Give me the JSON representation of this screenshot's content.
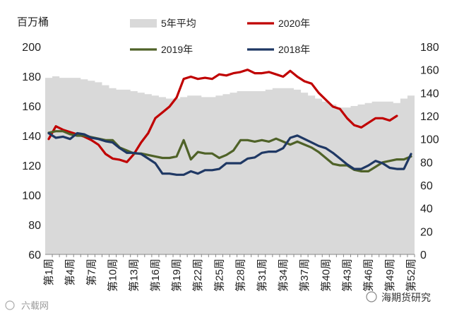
{
  "chart_data": {
    "type": "line",
    "unit_label": "百万桶",
    "y_left": {
      "min": 60,
      "max": 200,
      "step": 20
    },
    "y_right": {
      "min": 0,
      "max": 180,
      "step": 20
    },
    "x_weeks": 52,
    "x_tick_labels": [
      "第1周",
      "第4周",
      "第7周",
      "第10周",
      "第13周",
      "第16周",
      "第19周",
      "第22周",
      "第25周",
      "第28周",
      "第31周",
      "第34周",
      "第37周",
      "第40周",
      "第43周",
      "第46周",
      "第49周",
      "第52周"
    ],
    "x_tick_weeks": [
      1,
      4,
      7,
      10,
      13,
      16,
      19,
      22,
      25,
      28,
      31,
      34,
      37,
      40,
      43,
      46,
      49,
      52
    ],
    "series": [
      {
        "name": "5年平均",
        "axis": "left",
        "style": "area",
        "color": "#d9d9d9",
        "values": [
          179,
          180,
          179,
          179,
          179,
          178,
          177,
          176,
          174,
          172,
          171,
          171,
          170,
          169,
          168,
          167,
          166,
          165,
          165,
          166,
          167,
          167,
          166,
          166,
          167,
          168,
          169,
          170,
          170,
          170,
          170,
          171,
          172,
          172,
          172,
          171,
          169,
          167,
          165,
          163,
          161,
          159,
          159,
          160,
          161,
          162,
          163,
          163,
          163,
          162,
          165,
          167
        ]
      },
      {
        "name": "2020年",
        "axis": "right",
        "style": "line",
        "color": "#c00000",
        "values": [
          100,
          111,
          108,
          106,
          104,
          102,
          99,
          95,
          87,
          83,
          82,
          80,
          87,
          97,
          105,
          118,
          123,
          128,
          136,
          152,
          154,
          152,
          153,
          152,
          156,
          155,
          157,
          158,
          160,
          157,
          157,
          158,
          156,
          154,
          159,
          154,
          150,
          148,
          140,
          134,
          128,
          126,
          118,
          112,
          110,
          114,
          118,
          118,
          116,
          120
        ]
      },
      {
        "name": "2019年",
        "axis": "left",
        "style": "line",
        "color": "#4f6228",
        "values": [
          142,
          143,
          143,
          141,
          140,
          140,
          139,
          138,
          137,
          137,
          132,
          130,
          128,
          128,
          127,
          126,
          125,
          125,
          126,
          137,
          124,
          129,
          128,
          128,
          125,
          127,
          130,
          137,
          137,
          136,
          137,
          136,
          138,
          136,
          134,
          136,
          134,
          132,
          129,
          125,
          121,
          120,
          120,
          117,
          116,
          116,
          119,
          122,
          123,
          124,
          124,
          126
        ]
      },
      {
        "name": "2018年",
        "axis": "right",
        "style": "line",
        "color": "#1f3864",
        "values": [
          105,
          101,
          102,
          100,
          105,
          104,
          101,
          100,
          98,
          97,
          92,
          88,
          88,
          87,
          83,
          79,
          70,
          70,
          69,
          69,
          72,
          70,
          73,
          73,
          74,
          79,
          79,
          79,
          83,
          84,
          88,
          89,
          89,
          92,
          101,
          103,
          100,
          97,
          94,
          92,
          88,
          83,
          78,
          74,
          74,
          77,
          81,
          79,
          75,
          74,
          74,
          87
        ]
      }
    ]
  },
  "watermarks": {
    "left": "六载网",
    "right": "海期货研究"
  }
}
